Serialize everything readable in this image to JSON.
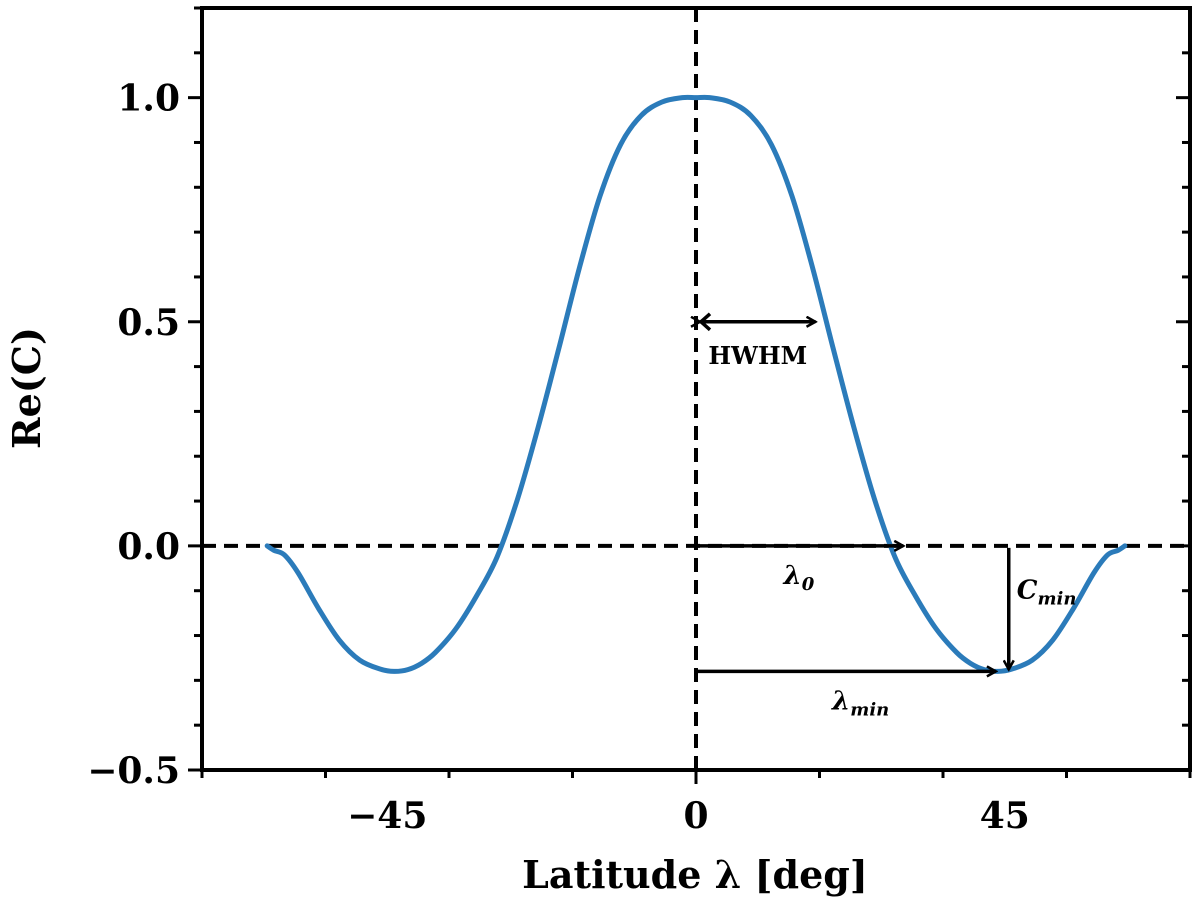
{
  "chart_data": {
    "type": "line",
    "xlabel": "Latitude λ [deg]",
    "ylabel": "Re(C)",
    "xlim": [
      -72,
      72
    ],
    "ylim": [
      -0.5,
      1.2
    ],
    "xticks": [
      -45,
      0,
      45
    ],
    "xtick_labels": [
      "−45",
      "0",
      "45"
    ],
    "yticks": [
      -0.5,
      0.0,
      0.5,
      1.0
    ],
    "ytick_labels": [
      "−0.5",
      "0.0",
      "0.5",
      "1.0"
    ],
    "grid": false,
    "line_color": "#2b7bba",
    "series": [
      {
        "x": [
          -62.5,
          -61.5,
          -60,
          -58,
          -55,
          -52,
          -49,
          -46,
          -44,
          -42,
          -40,
          -38,
          -35,
          -32,
          -29,
          -26,
          -23,
          -20,
          -17,
          -14,
          -11,
          -8,
          -5,
          -2,
          0,
          2,
          5,
          8,
          11,
          14,
          17,
          20,
          23,
          26,
          29,
          32,
          35,
          38,
          40,
          42,
          44,
          46,
          49,
          52,
          55,
          58,
          60,
          61.5,
          62.5
        ],
        "y": [
          0.0,
          -0.01,
          -0.02,
          -0.06,
          -0.14,
          -0.21,
          -0.255,
          -0.275,
          -0.28,
          -0.276,
          -0.262,
          -0.238,
          -0.185,
          -0.112,
          -0.025,
          0.105,
          0.265,
          0.44,
          0.62,
          0.78,
          0.895,
          0.96,
          0.99,
          1.0,
          1.0,
          1.0,
          0.99,
          0.96,
          0.895,
          0.78,
          0.62,
          0.44,
          0.265,
          0.105,
          -0.025,
          -0.112,
          -0.185,
          -0.238,
          -0.262,
          -0.276,
          -0.28,
          -0.275,
          -0.255,
          -0.21,
          -0.14,
          -0.06,
          -0.02,
          -0.01,
          0.0
        ]
      }
    ],
    "annotations": {
      "hwhm": {
        "label": "HWHM",
        "from": 0,
        "to": 18,
        "y": 0.5
      },
      "lambda0": {
        "symbol": "λ",
        "sub": "0",
        "from": 0,
        "to": 30.5,
        "y": 0.0
      },
      "cmin": {
        "symbol": "C",
        "sub": "min",
        "x": 45,
        "from": 0.0,
        "to": -0.28
      },
      "lambdamin": {
        "symbol": "λ",
        "sub": "min",
        "from": 0,
        "to": 44,
        "y": -0.28
      }
    }
  }
}
